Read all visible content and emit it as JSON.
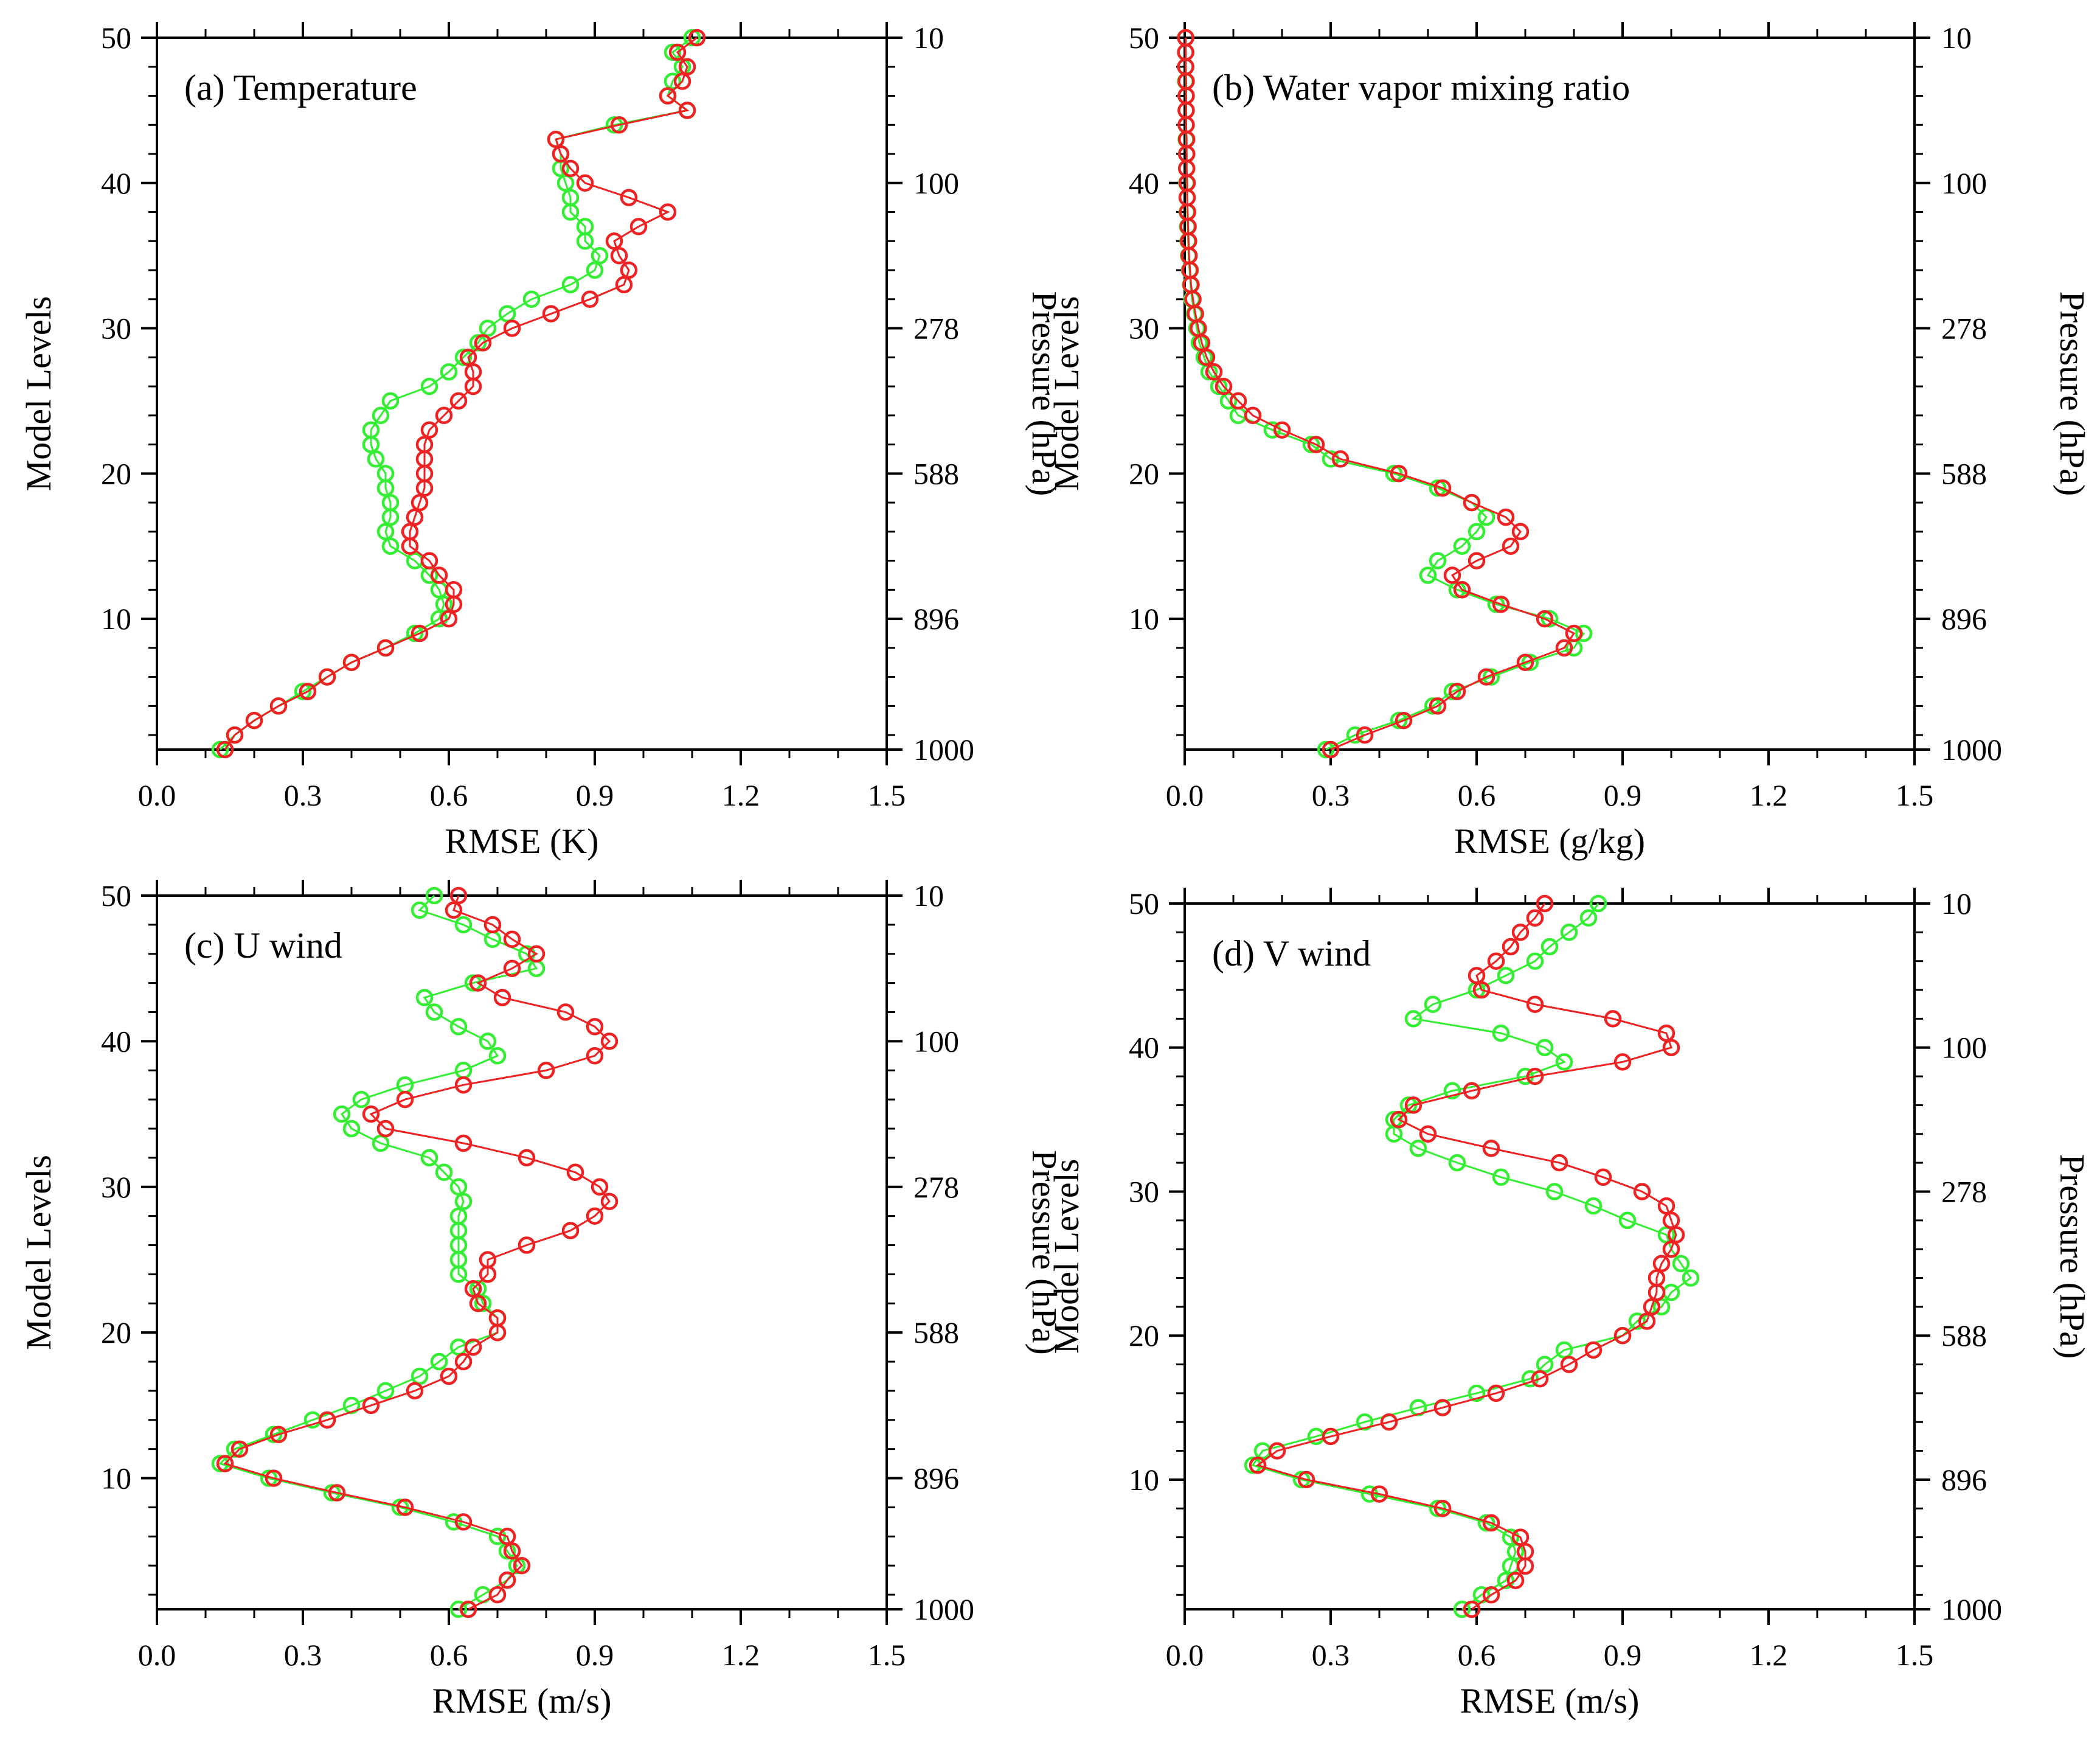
{
  "colors": {
    "series_green": "#33ee33",
    "series_red": "#ee2222",
    "axis": "#000000"
  },
  "chart_data": [
    {
      "type": "line",
      "title": "(a) Temperature",
      "xlabel": "RMSE (K)",
      "ylabel": "Model Levels",
      "ylabel_right": "Pressure (hPa)",
      "xlim": [
        0.0,
        1.5
      ],
      "ylim": [
        1,
        50
      ],
      "xticks": [
        "0.0",
        "0.3",
        "0.6",
        "0.9",
        "1.2",
        "1.5"
      ],
      "yticks": [
        "10",
        "20",
        "30",
        "40",
        "50"
      ],
      "right_ticks": [
        {
          "level": 1,
          "label": "1000"
        },
        {
          "level": 10,
          "label": "896"
        },
        {
          "level": 20,
          "label": "588"
        },
        {
          "level": 30,
          "label": "278"
        },
        {
          "level": 40,
          "label": "100"
        },
        {
          "level": 50,
          "label": "10"
        }
      ],
      "levels": [
        1,
        2,
        3,
        4,
        5,
        6,
        7,
        8,
        9,
        10,
        11,
        12,
        13,
        14,
        15,
        16,
        17,
        18,
        19,
        20,
        21,
        22,
        23,
        24,
        25,
        26,
        27,
        28,
        29,
        30,
        31,
        32,
        33,
        34,
        35,
        36,
        37,
        38,
        39,
        40,
        41,
        42,
        43,
        44,
        45,
        46,
        47,
        48,
        49,
        50
      ],
      "series": [
        {
          "name": "green",
          "color": "#33ee33",
          "values": [
            0.13,
            0.16,
            0.2,
            0.25,
            0.3,
            0.35,
            0.4,
            0.47,
            0.53,
            0.58,
            0.59,
            0.58,
            0.56,
            0.53,
            0.48,
            0.47,
            0.48,
            0.48,
            0.47,
            0.47,
            0.45,
            0.44,
            0.44,
            0.46,
            0.48,
            0.56,
            0.6,
            0.63,
            0.66,
            0.68,
            0.72,
            0.77,
            0.85,
            0.9,
            0.91,
            0.88,
            0.88,
            0.85,
            0.85,
            0.84,
            0.83,
            0.83,
            0.82,
            0.94,
            1.09,
            1.05,
            1.06,
            1.08,
            1.06,
            1.1
          ]
        },
        {
          "name": "red",
          "color": "#ee2222",
          "values": [
            0.14,
            0.16,
            0.2,
            0.25,
            0.31,
            0.35,
            0.4,
            0.47,
            0.54,
            0.6,
            0.61,
            0.61,
            0.58,
            0.56,
            0.52,
            0.52,
            0.53,
            0.54,
            0.55,
            0.55,
            0.55,
            0.55,
            0.56,
            0.59,
            0.62,
            0.65,
            0.65,
            0.64,
            0.67,
            0.73,
            0.81,
            0.89,
            0.96,
            0.97,
            0.95,
            0.94,
            0.99,
            1.05,
            0.97,
            0.88,
            0.85,
            0.83,
            0.82,
            0.95,
            1.09,
            1.05,
            1.08,
            1.09,
            1.07,
            1.11
          ]
        }
      ]
    },
    {
      "type": "line",
      "title": "(b) Water vapor mixing ratio",
      "xlabel": "RMSE (g/kg)",
      "ylabel": "Model Levels",
      "ylabel_right": "Pressure (hPa)",
      "xlim": [
        0.0,
        1.5
      ],
      "ylim": [
        1,
        50
      ],
      "xticks": [
        "0.0",
        "0.3",
        "0.6",
        "0.9",
        "1.2",
        "1.5"
      ],
      "yticks": [
        "10",
        "20",
        "30",
        "40",
        "50"
      ],
      "right_ticks": [
        {
          "level": 1,
          "label": "1000"
        },
        {
          "level": 10,
          "label": "896"
        },
        {
          "level": 20,
          "label": "588"
        },
        {
          "level": 30,
          "label": "278"
        },
        {
          "level": 40,
          "label": "100"
        },
        {
          "level": 50,
          "label": "10"
        }
      ],
      "levels": [
        1,
        2,
        3,
        4,
        5,
        6,
        7,
        8,
        9,
        10,
        11,
        12,
        13,
        14,
        15,
        16,
        17,
        18,
        19,
        20,
        21,
        22,
        23,
        24,
        25,
        26,
        27,
        28,
        29,
        30,
        31,
        32,
        33,
        34,
        35,
        36,
        37,
        38,
        39,
        40,
        41,
        42,
        43,
        44,
        45,
        46,
        47,
        48,
        49,
        50
      ],
      "series": [
        {
          "name": "green",
          "color": "#33ee33",
          "values": [
            0.29,
            0.35,
            0.44,
            0.51,
            0.55,
            0.63,
            0.71,
            0.8,
            0.82,
            0.75,
            0.64,
            0.56,
            0.5,
            0.52,
            0.57,
            0.6,
            0.62,
            0.59,
            0.52,
            0.43,
            0.3,
            0.26,
            0.18,
            0.11,
            0.09,
            0.07,
            0.05,
            0.04,
            0.03,
            0.025,
            0.02,
            0.015,
            0.012,
            0.01,
            0.008,
            0.007,
            0.006,
            0.005,
            0.005,
            0.004,
            0.004,
            0.004,
            0.003,
            0.003,
            0.003,
            0.003,
            0.002,
            0.002,
            0.002,
            0.002
          ]
        },
        {
          "name": "red",
          "color": "#ee2222",
          "values": [
            0.3,
            0.37,
            0.45,
            0.52,
            0.56,
            0.62,
            0.7,
            0.78,
            0.8,
            0.74,
            0.65,
            0.57,
            0.55,
            0.6,
            0.67,
            0.69,
            0.66,
            0.59,
            0.53,
            0.44,
            0.32,
            0.27,
            0.2,
            0.14,
            0.11,
            0.08,
            0.06,
            0.045,
            0.035,
            0.028,
            0.022,
            0.017,
            0.013,
            0.011,
            0.009,
            0.008,
            0.007,
            0.006,
            0.005,
            0.005,
            0.004,
            0.004,
            0.004,
            0.003,
            0.003,
            0.003,
            0.003,
            0.002,
            0.002,
            0.002
          ]
        }
      ]
    },
    {
      "type": "line",
      "title": "(c) U wind",
      "xlabel": "RMSE (m/s)",
      "ylabel": "Model Levels",
      "ylabel_right": "Pressure (hPa)",
      "xlim": [
        0.0,
        1.5
      ],
      "ylim": [
        1,
        50
      ],
      "xticks": [
        "0.0",
        "0.3",
        "0.6",
        "0.9",
        "1.2",
        "1.5"
      ],
      "yticks": [
        "10",
        "20",
        "30",
        "40",
        "50"
      ],
      "right_ticks": [
        {
          "level": 1,
          "label": "1000"
        },
        {
          "level": 10,
          "label": "896"
        },
        {
          "level": 20,
          "label": "588"
        },
        {
          "level": 30,
          "label": "278"
        },
        {
          "level": 40,
          "label": "100"
        },
        {
          "level": 50,
          "label": "10"
        }
      ],
      "levels": [
        1,
        2,
        3,
        4,
        5,
        6,
        7,
        8,
        9,
        10,
        11,
        12,
        13,
        14,
        15,
        16,
        17,
        18,
        19,
        20,
        21,
        22,
        23,
        24,
        25,
        26,
        27,
        28,
        29,
        30,
        31,
        32,
        33,
        34,
        35,
        36,
        37,
        38,
        39,
        40,
        41,
        42,
        43,
        44,
        45,
        46,
        47,
        48,
        49,
        50
      ],
      "series": [
        {
          "name": "green",
          "color": "#33ee33",
          "values": [
            0.62,
            0.67,
            0.72,
            0.74,
            0.72,
            0.7,
            0.61,
            0.5,
            0.36,
            0.23,
            0.13,
            0.16,
            0.24,
            0.32,
            0.4,
            0.47,
            0.54,
            0.58,
            0.62,
            0.7,
            0.7,
            0.67,
            0.66,
            0.62,
            0.62,
            0.62,
            0.62,
            0.62,
            0.63,
            0.62,
            0.59,
            0.56,
            0.46,
            0.4,
            0.38,
            0.42,
            0.51,
            0.63,
            0.7,
            0.68,
            0.62,
            0.57,
            0.55,
            0.65,
            0.78,
            0.76,
            0.69,
            0.63,
            0.54,
            0.57
          ]
        },
        {
          "name": "red",
          "color": "#ee2222",
          "values": [
            0.64,
            0.7,
            0.72,
            0.75,
            0.73,
            0.72,
            0.63,
            0.51,
            0.37,
            0.24,
            0.14,
            0.17,
            0.25,
            0.35,
            0.44,
            0.53,
            0.6,
            0.63,
            0.65,
            0.7,
            0.7,
            0.66,
            0.65,
            0.68,
            0.68,
            0.76,
            0.85,
            0.9,
            0.93,
            0.91,
            0.86,
            0.76,
            0.63,
            0.47,
            0.44,
            0.51,
            0.63,
            0.8,
            0.9,
            0.93,
            0.9,
            0.84,
            0.71,
            0.66,
            0.73,
            0.78,
            0.73,
            0.69,
            0.61,
            0.62
          ]
        }
      ]
    },
    {
      "type": "line",
      "title": "(d) V wind",
      "xlabel": "RMSE (m/s)",
      "ylabel": "Model Levels",
      "ylabel_right": "Pressure (hPa)",
      "xlim": [
        0.0,
        1.5
      ],
      "ylim": [
        1,
        50
      ],
      "xticks": [
        "0.0",
        "0.3",
        "0.6",
        "0.9",
        "1.2",
        "1.5"
      ],
      "yticks": [
        "10",
        "20",
        "30",
        "40",
        "50"
      ],
      "right_ticks": [
        {
          "level": 1,
          "label": "1000"
        },
        {
          "level": 10,
          "label": "896"
        },
        {
          "level": 20,
          "label": "588"
        },
        {
          "level": 30,
          "label": "278"
        },
        {
          "level": 40,
          "label": "100"
        },
        {
          "level": 50,
          "label": "10"
        }
      ],
      "levels": [
        1,
        2,
        3,
        4,
        5,
        6,
        7,
        8,
        9,
        10,
        11,
        12,
        13,
        14,
        15,
        16,
        17,
        18,
        19,
        20,
        21,
        22,
        23,
        24,
        25,
        26,
        27,
        28,
        29,
        30,
        31,
        32,
        33,
        34,
        35,
        36,
        37,
        38,
        39,
        40,
        41,
        42,
        43,
        44,
        45,
        46,
        47,
        48,
        49,
        50
      ],
      "series": [
        {
          "name": "green",
          "color": "#33ee33",
          "values": [
            0.57,
            0.61,
            0.66,
            0.67,
            0.68,
            0.67,
            0.62,
            0.52,
            0.38,
            0.24,
            0.14,
            0.16,
            0.27,
            0.37,
            0.48,
            0.6,
            0.71,
            0.74,
            0.78,
            0.9,
            0.93,
            0.98,
            1.0,
            1.04,
            1.02,
            1.0,
            0.99,
            0.91,
            0.84,
            0.76,
            0.65,
            0.56,
            0.48,
            0.43,
            0.43,
            0.46,
            0.55,
            0.7,
            0.78,
            0.74,
            0.65,
            0.47,
            0.51,
            0.6,
            0.66,
            0.72,
            0.75,
            0.79,
            0.83,
            0.85
          ]
        },
        {
          "name": "red",
          "color": "#ee2222",
          "values": [
            0.59,
            0.63,
            0.68,
            0.7,
            0.7,
            0.69,
            0.63,
            0.53,
            0.4,
            0.25,
            0.15,
            0.19,
            0.3,
            0.42,
            0.53,
            0.64,
            0.73,
            0.79,
            0.84,
            0.9,
            0.95,
            0.96,
            0.97,
            0.97,
            0.98,
            1.0,
            1.01,
            1.0,
            0.99,
            0.94,
            0.86,
            0.77,
            0.63,
            0.5,
            0.44,
            0.47,
            0.59,
            0.72,
            0.9,
            1.0,
            0.99,
            0.88,
            0.72,
            0.61,
            0.6,
            0.64,
            0.67,
            0.69,
            0.72,
            0.74
          ]
        }
      ]
    }
  ]
}
